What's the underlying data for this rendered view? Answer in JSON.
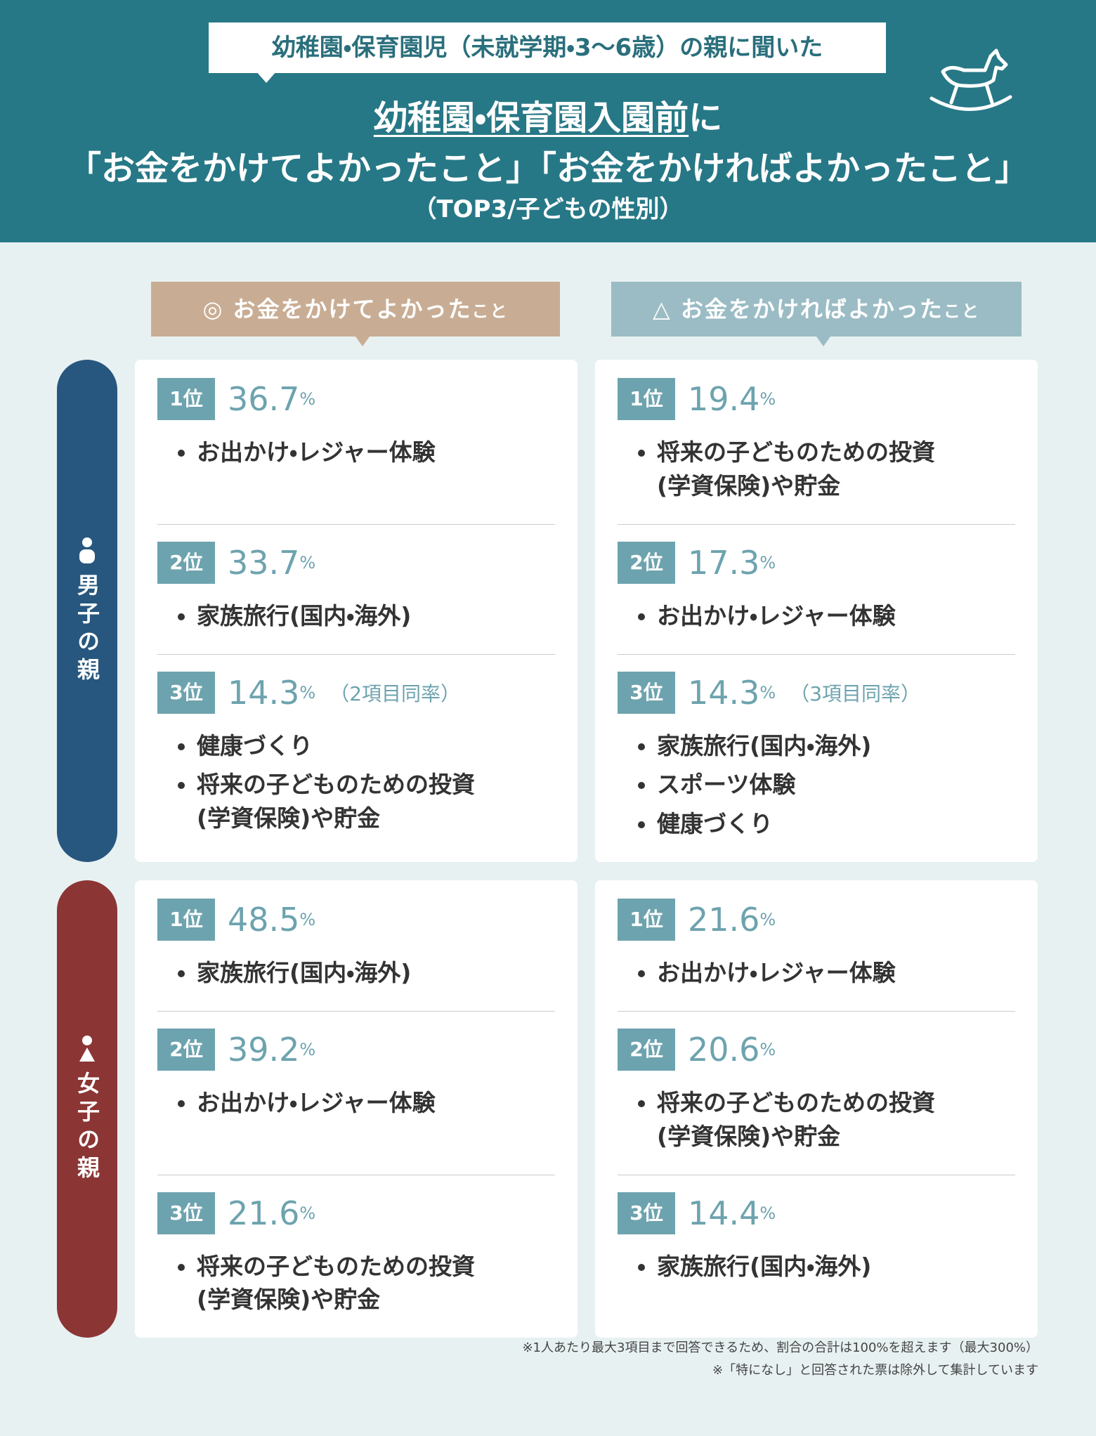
{
  "header": {
    "tag": "幼稚園・保育園児（未就学期・3〜6歳）の親に聞いた",
    "title_underlined": "幼稚園・保育園入園前",
    "title_rest": "に",
    "title_line2": "「お金をかけてよかったこと」「お金をかければよかったこと」",
    "subtitle": "（TOP3/子どもの性別）"
  },
  "columns": [
    {
      "symbol": "◎",
      "label": "お金をかけてよかった",
      "suffix": "こと"
    },
    {
      "symbol": "△",
      "label": "お金をかければよかった",
      "suffix": "こと"
    }
  ],
  "groups": [
    {
      "label": "男子の親",
      "cells": [
        [
          {
            "rank": "1位",
            "value": "36.7",
            "unit": "%",
            "items": [
              [
                "お出かけ・レジャー体験"
              ]
            ]
          },
          {
            "rank": "2位",
            "value": "33.7",
            "unit": "%",
            "items": [
              [
                "家族旅行(国内・海外)"
              ]
            ]
          },
          {
            "rank": "3位",
            "value": "14.3",
            "unit": "%",
            "note": "（2項目同率）",
            "items": [
              [
                "健康づくり"
              ],
              [
                "将来の子どものための投資",
                "(学資保険)や貯金"
              ]
            ]
          }
        ],
        [
          {
            "rank": "1位",
            "value": "19.4",
            "unit": "%",
            "items": [
              [
                "将来の子どものための投資",
                "(学資保険)や貯金"
              ]
            ]
          },
          {
            "rank": "2位",
            "value": "17.3",
            "unit": "%",
            "items": [
              [
                "お出かけ・レジャー体験"
              ]
            ]
          },
          {
            "rank": "3位",
            "value": "14.3",
            "unit": "%",
            "note": "（3項目同率）",
            "items": [
              [
                "家族旅行(国内・海外)"
              ],
              [
                "スポーツ体験"
              ],
              [
                "健康づくり"
              ]
            ]
          }
        ]
      ]
    },
    {
      "label": "女子の親",
      "cells": [
        [
          {
            "rank": "1位",
            "value": "48.5",
            "unit": "%",
            "items": [
              [
                "家族旅行(国内・海外)"
              ]
            ]
          },
          {
            "rank": "2位",
            "value": "39.2",
            "unit": "%",
            "items": [
              [
                "お出かけ・レジャー体験"
              ]
            ]
          },
          {
            "rank": "3位",
            "value": "21.6",
            "unit": "%",
            "items": [
              [
                "将来の子どものための投資",
                "(学資保険)や貯金"
              ]
            ]
          }
        ],
        [
          {
            "rank": "1位",
            "value": "21.6",
            "unit": "%",
            "items": [
              [
                "お出かけ・レジャー体験"
              ]
            ]
          },
          {
            "rank": "2位",
            "value": "20.6",
            "unit": "%",
            "items": [
              [
                "将来の子どものための投資",
                "(学資保険)や貯金"
              ]
            ]
          },
          {
            "rank": "3位",
            "value": "14.4",
            "unit": "%",
            "items": [
              [
                "家族旅行(国内・海外)"
              ]
            ]
          }
        ]
      ]
    }
  ],
  "notes": [
    "※1人あたり最大3項目まで回答できるため、割合の合計は100%を超えます（最大300%）",
    "※「特になし」と回答された票は除外して集計しています"
  ]
}
